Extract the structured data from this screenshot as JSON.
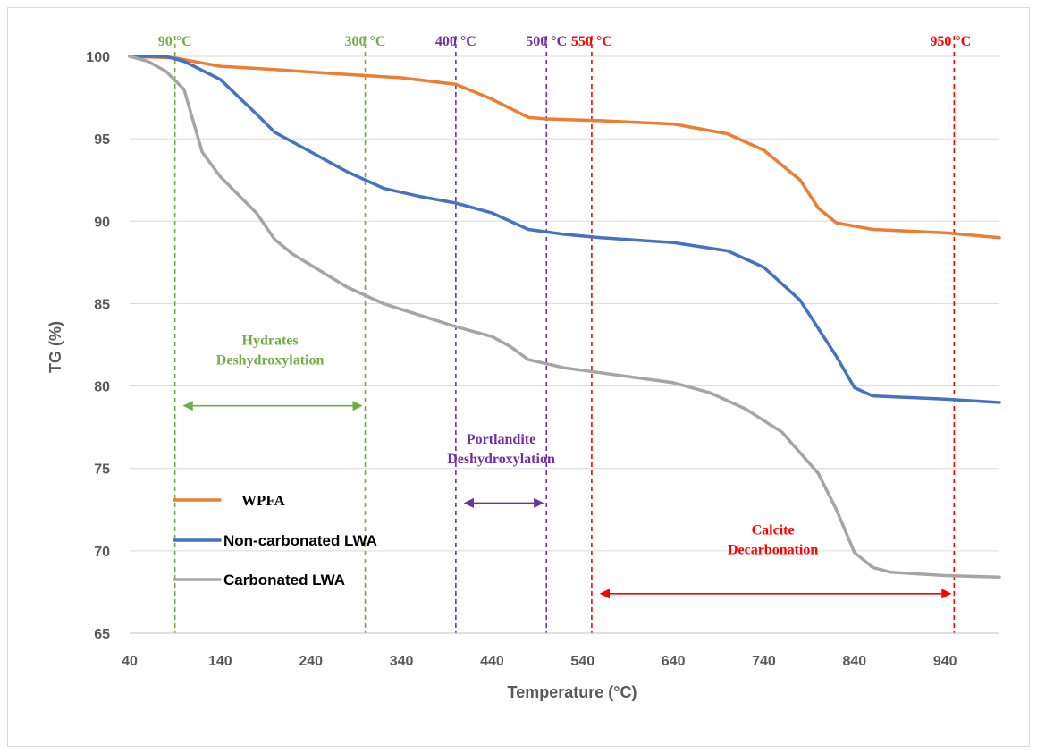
{
  "chart_data": {
    "type": "line",
    "xlabel": "Temperature (°C)",
    "ylabel": "TG (%)",
    "xlim": [
      40,
      1000
    ],
    "ylim": [
      65,
      100
    ],
    "x_ticks": [
      40,
      140,
      240,
      340,
      440,
      540,
      640,
      740,
      840,
      940
    ],
    "y_ticks": [
      65,
      70,
      75,
      80,
      85,
      90,
      95,
      100
    ],
    "grid": "horizontal",
    "legend_position": "bottom-left",
    "series": [
      {
        "name": "WPFA",
        "color": "#ED7D31",
        "x": [
          40,
          90,
          140,
          200,
          280,
          340,
          400,
          440,
          480,
          500,
          560,
          640,
          700,
          740,
          780,
          800,
          820,
          860,
          940,
          1000
        ],
        "y": [
          100,
          99.9,
          99.4,
          99.2,
          98.9,
          98.7,
          98.3,
          97.4,
          96.3,
          96.2,
          96.1,
          95.9,
          95.3,
          94.3,
          92.5,
          90.8,
          89.9,
          89.5,
          89.3,
          89.0
        ]
      },
      {
        "name": "Non-carbonated LWA",
        "color": "#4472C4",
        "x": [
          40,
          80,
          100,
          140,
          180,
          200,
          240,
          280,
          320,
          360,
          400,
          440,
          480,
          520,
          560,
          640,
          700,
          740,
          780,
          820,
          840,
          860,
          940,
          1000
        ],
        "y": [
          100,
          100,
          99.7,
          98.6,
          96.5,
          95.4,
          94.2,
          93.0,
          92.0,
          91.5,
          91.1,
          90.5,
          89.5,
          89.2,
          89.0,
          88.7,
          88.2,
          87.2,
          85.2,
          81.8,
          79.9,
          79.4,
          79.2,
          79.0
        ]
      },
      {
        "name": "Carbonated LWA",
        "color": "#A5A5A5",
        "x": [
          40,
          60,
          80,
          100,
          120,
          140,
          180,
          200,
          220,
          280,
          320,
          360,
          400,
          440,
          460,
          480,
          520,
          560,
          640,
          680,
          720,
          760,
          800,
          820,
          840,
          860,
          880,
          940,
          1000
        ],
        "y": [
          100,
          99.7,
          99.1,
          98.0,
          94.2,
          92.7,
          90.5,
          88.9,
          88.0,
          86.0,
          85.0,
          84.3,
          83.6,
          83.0,
          82.4,
          81.6,
          81.1,
          80.8,
          80.2,
          79.6,
          78.6,
          77.2,
          74.7,
          72.5,
          69.9,
          69.0,
          68.7,
          68.5,
          68.4
        ]
      }
    ],
    "reference_lines": [
      {
        "x": 90,
        "label": "90 °C",
        "color": "#70AD47"
      },
      {
        "x": 300,
        "label": "300 °C",
        "color": "#70AD47"
      },
      {
        "x": 400,
        "label": "400 °C",
        "color": "#7030A0"
      },
      {
        "x": 500,
        "label": "500 °C",
        "color": "#7030A0"
      },
      {
        "x": 550,
        "label": "550 °C",
        "color": "#FF0000"
      },
      {
        "x": 950,
        "label": "950 °C",
        "color": "#FF0000"
      }
    ],
    "annotations": [
      {
        "lines": [
          "Hydrates",
          "Deshydroxylation"
        ],
        "color": "#70AD47",
        "from": 90,
        "to": 300,
        "y": 78.8,
        "text_y": 82.5
      },
      {
        "lines": [
          "Portlandite",
          "Deshydroxylation"
        ],
        "color": "#7030A0",
        "from": 400,
        "to": 500,
        "y": 72.9,
        "text_y": 76.5
      },
      {
        "lines": [
          "Calcite",
          "Decarbonation"
        ],
        "color": "#FF0000",
        "from": 550,
        "to": 950,
        "y": 67.4,
        "text_y": 71.0
      }
    ]
  }
}
